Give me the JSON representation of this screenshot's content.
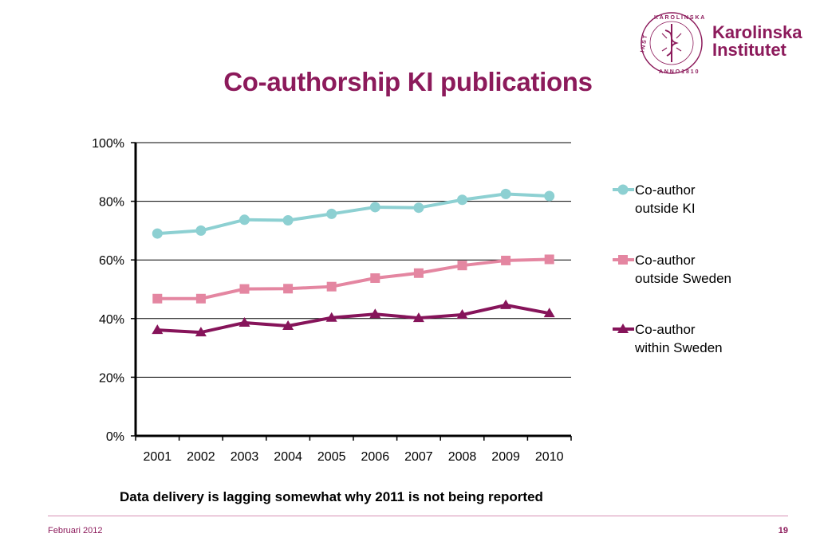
{
  "logo": {
    "seal_text": "KAROLINSKA INSTITUTET ANNO 1810",
    "name_line1": "Karolinska",
    "name_line2": "Institutet",
    "color": "#8c1a5b"
  },
  "note": "Data delivery is lagging somewhat why 2011 is not being reported",
  "footer": {
    "date": "Februari 2012",
    "page": "19"
  },
  "chart_data": {
    "type": "line",
    "title": "Co-authorship KI publications",
    "x": [
      "2001",
      "2002",
      "2003",
      "2004",
      "2005",
      "2006",
      "2007",
      "2008",
      "2009",
      "2010"
    ],
    "ylim": [
      0,
      100
    ],
    "yticks": [
      "0%",
      "20%",
      "40%",
      "60%",
      "80%",
      "100%"
    ],
    "grid": true,
    "legend_position": "right",
    "series": [
      {
        "name_lines": [
          "Co-author",
          "outside KI"
        ],
        "values": [
          69,
          70,
          73.7,
          73.5,
          75.7,
          78,
          77.8,
          80.5,
          82.5,
          81.8
        ],
        "color": "#8dd0d2",
        "marker": "circle"
      },
      {
        "name_lines": [
          "Co-author",
          "outside Sweden"
        ],
        "values": [
          46.8,
          46.8,
          50.1,
          50.2,
          50.9,
          53.8,
          55.5,
          58.1,
          59.8,
          60.2
        ],
        "color": "#e486a1",
        "marker": "square"
      },
      {
        "name_lines": [
          "Co-author",
          "within Sweden"
        ],
        "values": [
          36.1,
          35.3,
          38.6,
          37.5,
          40.3,
          41.5,
          40.2,
          41.3,
          44.6,
          41.8
        ],
        "color": "#86145a",
        "marker": "triangle"
      }
    ]
  }
}
